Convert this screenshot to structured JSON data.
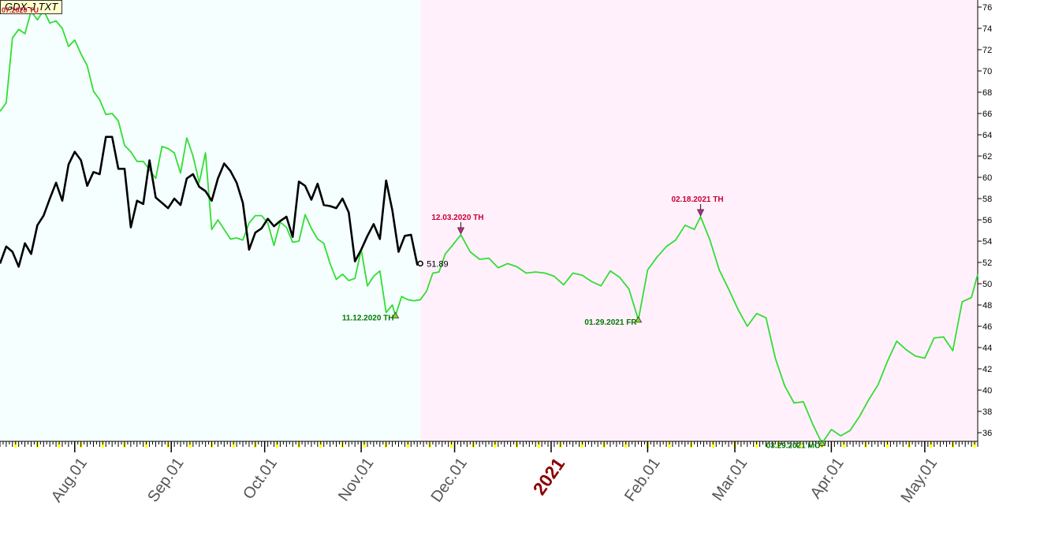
{
  "ticker": "GDX-J  TXT",
  "ticker_overlay": "07.2020 TU",
  "chart_data": {
    "type": "line",
    "y_axis": {
      "min": 35,
      "max": 76,
      "ticks": [
        36,
        38,
        40,
        42,
        44,
        46,
        48,
        50,
        52,
        54,
        56,
        58,
        60,
        62,
        64,
        66,
        68,
        70,
        72,
        74,
        76
      ],
      "side": "right"
    },
    "x_axis": {
      "start": "2020-07-08",
      "end": "2021-05-18",
      "month_labels": [
        {
          "date": "2020-08-01",
          "label": "Aug.01"
        },
        {
          "date": "2020-09-01",
          "label": "Sep.01"
        },
        {
          "date": "2020-10-01",
          "label": "Oct.01"
        },
        {
          "date": "2020-11-01",
          "label": "Nov.01"
        },
        {
          "date": "2020-12-01",
          "label": "Dec.01"
        },
        {
          "date": "2021-01-01",
          "label": "2021",
          "year": true
        },
        {
          "date": "2021-02-01",
          "label": "Feb.01"
        },
        {
          "date": "2021-03-01",
          "label": "Mar.01"
        },
        {
          "date": "2021-04-01",
          "label": "Apr.01"
        },
        {
          "date": "2021-05-01",
          "label": "May.01"
        }
      ]
    },
    "background_split_date": "2020-11-20",
    "series": [
      {
        "role": "projection",
        "color": "#33dd33",
        "points": [
          [
            "2020-07-08",
            66.2
          ],
          [
            "2020-07-10",
            67.0
          ],
          [
            "2020-07-12",
            73.1
          ],
          [
            "2020-07-14",
            73.9
          ],
          [
            "2020-07-16",
            73.5
          ],
          [
            "2020-07-18",
            75.6
          ],
          [
            "2020-07-20",
            74.8
          ],
          [
            "2020-07-22",
            75.7
          ],
          [
            "2020-07-24",
            74.5
          ],
          [
            "2020-07-26",
            74.7
          ],
          [
            "2020-07-28",
            74.0
          ],
          [
            "2020-07-30",
            72.3
          ],
          [
            "2020-08-01",
            72.9
          ],
          [
            "2020-08-03",
            71.6
          ],
          [
            "2020-08-05",
            70.5
          ],
          [
            "2020-08-07",
            68.1
          ],
          [
            "2020-08-09",
            67.3
          ],
          [
            "2020-08-11",
            65.9
          ],
          [
            "2020-08-13",
            66.0
          ],
          [
            "2020-08-15",
            65.3
          ],
          [
            "2020-08-17",
            63.0
          ],
          [
            "2020-08-19",
            62.4
          ],
          [
            "2020-08-21",
            61.5
          ],
          [
            "2020-08-23",
            61.5
          ],
          [
            "2020-08-25",
            60.7
          ],
          [
            "2020-08-27",
            59.9
          ],
          [
            "2020-08-29",
            62.9
          ],
          [
            "2020-08-31",
            62.7
          ],
          [
            "2020-09-02",
            62.3
          ],
          [
            "2020-09-04",
            60.4
          ],
          [
            "2020-09-06",
            63.7
          ],
          [
            "2020-09-08",
            62.0
          ],
          [
            "2020-09-10",
            59.5
          ],
          [
            "2020-09-12",
            62.3
          ],
          [
            "2020-09-14",
            55.1
          ],
          [
            "2020-09-16",
            56.0
          ],
          [
            "2020-09-18",
            55.1
          ],
          [
            "2020-09-20",
            54.2
          ],
          [
            "2020-09-22",
            54.3
          ],
          [
            "2020-09-24",
            54.1
          ],
          [
            "2020-09-26",
            55.7
          ],
          [
            "2020-09-28",
            56.4
          ],
          [
            "2020-09-30",
            56.4
          ],
          [
            "2020-10-02",
            55.7
          ],
          [
            "2020-10-04",
            53.6
          ],
          [
            "2020-10-06",
            55.8
          ],
          [
            "2020-10-08",
            55.3
          ],
          [
            "2020-10-10",
            53.9
          ],
          [
            "2020-10-12",
            54.0
          ],
          [
            "2020-10-14",
            56.5
          ],
          [
            "2020-10-16",
            55.2
          ],
          [
            "2020-10-18",
            54.2
          ],
          [
            "2020-10-20",
            53.8
          ],
          [
            "2020-10-22",
            51.9
          ],
          [
            "2020-10-24",
            50.4
          ],
          [
            "2020-10-26",
            50.9
          ],
          [
            "2020-10-28",
            50.3
          ],
          [
            "2020-10-30",
            50.5
          ],
          [
            "2020-11-01",
            53.2
          ],
          [
            "2020-11-03",
            49.8
          ],
          [
            "2020-11-05",
            50.7
          ],
          [
            "2020-11-07",
            51.2
          ],
          [
            "2020-11-09",
            47.3
          ],
          [
            "2020-11-11",
            48.0
          ],
          [
            "2020-11-12",
            47.0
          ],
          [
            "2020-11-14",
            48.8
          ],
          [
            "2020-11-16",
            48.5
          ],
          [
            "2020-11-18",
            48.4
          ],
          [
            "2020-11-20",
            48.5
          ],
          [
            "2020-11-22",
            49.3
          ],
          [
            "2020-11-24",
            51.0
          ],
          [
            "2020-11-26",
            51.1
          ],
          [
            "2020-11-28",
            52.8
          ],
          [
            "2020-11-30",
            53.5
          ],
          [
            "2020-12-03",
            54.6
          ],
          [
            "2020-12-06",
            53.0
          ],
          [
            "2020-12-09",
            52.3
          ],
          [
            "2020-12-12",
            52.4
          ],
          [
            "2020-12-15",
            51.5
          ],
          [
            "2020-12-18",
            51.9
          ],
          [
            "2020-12-21",
            51.6
          ],
          [
            "2020-12-24",
            51.0
          ],
          [
            "2020-12-27",
            51.1
          ],
          [
            "2020-12-30",
            51.0
          ],
          [
            "2021-01-02",
            50.7
          ],
          [
            "2021-01-05",
            49.9
          ],
          [
            "2021-01-08",
            51.0
          ],
          [
            "2021-01-11",
            50.8
          ],
          [
            "2021-01-14",
            50.2
          ],
          [
            "2021-01-17",
            49.8
          ],
          [
            "2021-01-20",
            51.2
          ],
          [
            "2021-01-23",
            50.6
          ],
          [
            "2021-01-26",
            49.5
          ],
          [
            "2021-01-29",
            46.6
          ],
          [
            "2021-02-01",
            51.3
          ],
          [
            "2021-02-04",
            52.5
          ],
          [
            "2021-02-07",
            53.5
          ],
          [
            "2021-02-10",
            54.1
          ],
          [
            "2021-02-13",
            55.5
          ],
          [
            "2021-02-16",
            55.1
          ],
          [
            "2021-02-18",
            56.3
          ],
          [
            "2021-02-21",
            54.1
          ],
          [
            "2021-02-24",
            51.3
          ],
          [
            "2021-02-27",
            49.5
          ],
          [
            "2021-03-02",
            47.6
          ],
          [
            "2021-03-05",
            46.0
          ],
          [
            "2021-03-08",
            47.2
          ],
          [
            "2021-03-11",
            46.8
          ],
          [
            "2021-03-14",
            43.0
          ],
          [
            "2021-03-17",
            40.4
          ],
          [
            "2021-03-20",
            38.8
          ],
          [
            "2021-03-23",
            38.9
          ],
          [
            "2021-03-26",
            36.8
          ],
          [
            "2021-03-29",
            35.0
          ],
          [
            "2021-04-01",
            36.3
          ],
          [
            "2021-04-04",
            35.7
          ],
          [
            "2021-04-07",
            36.2
          ],
          [
            "2021-04-10",
            37.5
          ],
          [
            "2021-04-13",
            39.1
          ],
          [
            "2021-04-16",
            40.5
          ],
          [
            "2021-04-19",
            42.7
          ],
          [
            "2021-04-22",
            44.6
          ],
          [
            "2021-04-25",
            43.8
          ],
          [
            "2021-04-28",
            43.2
          ],
          [
            "2021-05-01",
            43.0
          ],
          [
            "2021-05-04",
            44.9
          ],
          [
            "2021-05-07",
            45.0
          ],
          [
            "2021-05-10",
            43.7
          ],
          [
            "2021-05-13",
            48.3
          ],
          [
            "2021-05-16",
            48.7
          ],
          [
            "2021-05-18",
            50.9
          ]
        ]
      },
      {
        "role": "price",
        "color": "#000000",
        "points": [
          [
            "2020-07-08",
            51.9
          ],
          [
            "2020-07-10",
            53.5
          ],
          [
            "2020-07-12",
            53.0
          ],
          [
            "2020-07-14",
            51.6
          ],
          [
            "2020-07-16",
            53.8
          ],
          [
            "2020-07-18",
            52.8
          ],
          [
            "2020-07-20",
            55.5
          ],
          [
            "2020-07-22",
            56.4
          ],
          [
            "2020-07-24",
            58.0
          ],
          [
            "2020-07-26",
            59.5
          ],
          [
            "2020-07-28",
            57.8
          ],
          [
            "2020-07-30",
            61.2
          ],
          [
            "2020-08-01",
            62.4
          ],
          [
            "2020-08-03",
            61.6
          ],
          [
            "2020-08-05",
            59.2
          ],
          [
            "2020-08-07",
            60.5
          ],
          [
            "2020-08-09",
            60.3
          ],
          [
            "2020-08-11",
            63.8
          ],
          [
            "2020-08-13",
            63.8
          ],
          [
            "2020-08-15",
            60.8
          ],
          [
            "2020-08-17",
            60.8
          ],
          [
            "2020-08-19",
            55.3
          ],
          [
            "2020-08-21",
            57.8
          ],
          [
            "2020-08-23",
            57.5
          ],
          [
            "2020-08-25",
            61.6
          ],
          [
            "2020-08-27",
            58.1
          ],
          [
            "2020-08-29",
            57.6
          ],
          [
            "2020-08-31",
            57.1
          ],
          [
            "2020-09-02",
            58.0
          ],
          [
            "2020-09-04",
            57.4
          ],
          [
            "2020-09-06",
            59.9
          ],
          [
            "2020-09-08",
            60.3
          ],
          [
            "2020-09-10",
            59.1
          ],
          [
            "2020-09-12",
            58.7
          ],
          [
            "2020-09-14",
            57.8
          ],
          [
            "2020-09-16",
            59.9
          ],
          [
            "2020-09-18",
            61.3
          ],
          [
            "2020-09-20",
            60.6
          ],
          [
            "2020-09-22",
            59.5
          ],
          [
            "2020-09-24",
            57.6
          ],
          [
            "2020-09-26",
            53.2
          ],
          [
            "2020-09-28",
            54.8
          ],
          [
            "2020-09-30",
            55.2
          ],
          [
            "2020-10-02",
            56.1
          ],
          [
            "2020-10-04",
            55.4
          ],
          [
            "2020-10-06",
            55.9
          ],
          [
            "2020-10-08",
            56.3
          ],
          [
            "2020-10-10",
            54.4
          ],
          [
            "2020-10-12",
            59.6
          ],
          [
            "2020-10-14",
            59.2
          ],
          [
            "2020-10-16",
            57.9
          ],
          [
            "2020-10-18",
            59.4
          ],
          [
            "2020-10-20",
            57.4
          ],
          [
            "2020-10-22",
            57.3
          ],
          [
            "2020-10-24",
            57.1
          ],
          [
            "2020-10-26",
            58.0
          ],
          [
            "2020-10-28",
            56.7
          ],
          [
            "2020-10-30",
            52.1
          ],
          [
            "2020-11-01",
            53.2
          ],
          [
            "2020-11-03",
            54.5
          ],
          [
            "2020-11-05",
            55.6
          ],
          [
            "2020-11-07",
            54.2
          ],
          [
            "2020-11-09",
            59.7
          ],
          [
            "2020-11-11",
            56.9
          ],
          [
            "2020-11-13",
            53.0
          ],
          [
            "2020-11-15",
            54.5
          ],
          [
            "2020-11-17",
            54.6
          ],
          [
            "2020-11-19",
            51.8
          ],
          [
            "2020-11-20",
            51.9
          ]
        ],
        "last_value_label": "51.89"
      }
    ],
    "annotations": [
      {
        "type": "high",
        "date": "2020-07-18",
        "value": 75.6,
        "label": "",
        "color": "#cc0033"
      },
      {
        "type": "low",
        "date": "2020-11-12",
        "value": 47.0,
        "label": "11.12.2020 TH",
        "color": "#007700"
      },
      {
        "type": "high",
        "date": "2020-12-03",
        "value": 54.6,
        "label": "12.03.2020 TH",
        "color": "#cc0033"
      },
      {
        "type": "low",
        "date": "2021-01-29",
        "value": 46.6,
        "label": "01.29.2021 FR",
        "color": "#007700"
      },
      {
        "type": "high",
        "date": "2021-02-18",
        "value": 56.3,
        "label": "02.18.2021 TH",
        "color": "#cc0033"
      },
      {
        "type": "low",
        "date": "2021-03-29",
        "value": 35.0,
        "label": "03.29.2021 MO",
        "color": "#007700"
      }
    ],
    "colors": {
      "past_background": "#f5ffff",
      "future_background": "#fff0fc",
      "year_label": "#8b0000",
      "month_label": "#555555"
    }
  }
}
